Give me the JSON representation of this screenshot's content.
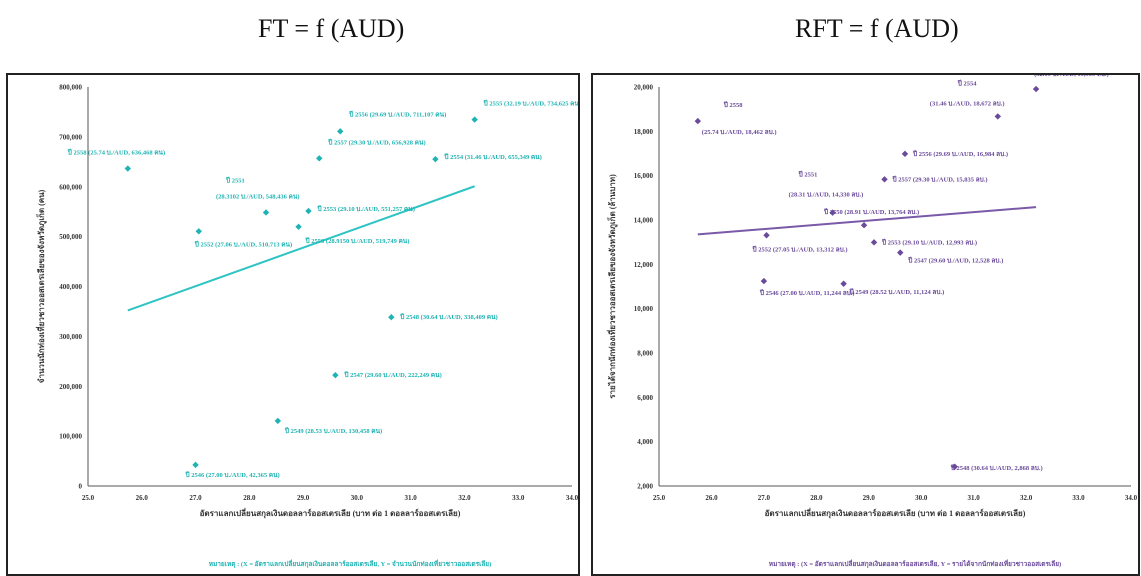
{
  "headlines": {
    "left": "FT = f (AUD)",
    "right": "RFT = f (AUD)"
  },
  "chart_data": [
    {
      "type": "scatter",
      "color": "#1fb3b3",
      "trend_color": "#2ec4c4",
      "xlim": [
        25.0,
        34.0
      ],
      "ylim": [
        0,
        800000
      ],
      "xticks": [
        "25.0",
        "26.0",
        "27.0",
        "28.0",
        "29.0",
        "30.0",
        "31.0",
        "32.0",
        "33.0",
        "34.0"
      ],
      "yticks": [
        "0",
        "100,000",
        "200,000",
        "300,000",
        "400,000",
        "500,000",
        "600,000",
        "700,000",
        "800,000"
      ],
      "xlabel": "อัตราแลกเปลี่ยนสกุลเงินดอลลาร์ออสเตรเลีย (บาท ต่อ 1 ดอลลาร์ออสเตรเลีย)",
      "ylabel": "จำนวนนักท่องเที่ยวชาวออสเตรเลียของจังหวัดภูเก็ต (คน)",
      "note": "หมายเหตุ : (X = อัตราแลกเปลี่ยนสกุลเงินดอลลาร์ออสเตรเลีย, Y = จำนวนนักท่องเที่ยวชาวออสเตรเลีย)",
      "trend": [
        [
          25.74,
          352000
        ],
        [
          32.19,
          601000
        ]
      ],
      "points": [
        {
          "x": 25.74,
          "y": 636468,
          "label": "ปี 2558 (25.74 บ./AUD, 636,468 คน)"
        },
        {
          "x": 27.06,
          "y": 510713,
          "label": "ปี 2552 (27.06 บ./AUD, 510,713 คน)"
        },
        {
          "x": 28.3102,
          "y": 548436,
          "label": "(28.3102 บ./AUD, 548,436 คน)",
          "title": "ปี 2551"
        },
        {
          "x": 28.915,
          "y": 519749,
          "label": "ปี 2550 (28.9150 บ./AUD, 519,749 คน)"
        },
        {
          "x": 29.1,
          "y": 551257,
          "label": "ปี 2553 (29.10 บ./AUD, 551,257 คน)"
        },
        {
          "x": 29.3,
          "y": 656928,
          "label": "ปี 2557 (29.30 บ./AUD, 656,928 คน)"
        },
        {
          "x": 29.69,
          "y": 711107,
          "label": "ปี 2556 (29.69 บ./AUD, 711,107 คน)"
        },
        {
          "x": 31.46,
          "y": 655349,
          "label": "ปี 2554 (31.46 บ./AUD, 655,349 คน)"
        },
        {
          "x": 32.19,
          "y": 734625,
          "label": "ปี 2555 (32.19 บ./AUD, 734,625 คน)"
        },
        {
          "x": 30.64,
          "y": 338409,
          "label": "ปี 2548 (30.64 บ./AUD, 338,409 คน)"
        },
        {
          "x": 29.6,
          "y": 222249,
          "label": "ปี 2547 (29.60 บ./AUD, 222,249 คน)"
        },
        {
          "x": 28.53,
          "y": 130458,
          "label": "ปี 2549 (28.53 บ./AUD, 130,458 คน)"
        },
        {
          "x": 27.0,
          "y": 42365,
          "label": "ปี 2546 (27.00 บ./AUD, 42,365 คน)"
        }
      ]
    },
    {
      "type": "scatter",
      "color": "#6a4a9a",
      "trend_color": "#7a5aa8",
      "xlim": [
        25.0,
        34.0
      ],
      "ylim": [
        2000,
        20000
      ],
      "xticks": [
        "25.0",
        "26.0",
        "27.0",
        "28.0",
        "29.0",
        "30.0",
        "31.0",
        "32.0",
        "33.0",
        "34.0"
      ],
      "yticks": [
        "2,000",
        "4,000",
        "6,000",
        "8,000",
        "10,000",
        "12,000",
        "14,000",
        "16,000",
        "18,000",
        "20,000"
      ],
      "xlabel": "อัตราแลกเปลี่ยนสกุลเงินดอลลาร์ออสเตรเลีย (บาท ต่อ 1 ดอลลาร์ออสเตรเลีย)",
      "ylabel": "รายได้จากนักท่องเที่ยวชาวออสเตรเลียของจังหวัดภูเก็ต (ล้านบาท)",
      "note": "หมายเหตุ : (X = อัตราแลกเปลี่ยนสกุลเงินดอลลาร์ออสเตรเลีย, Y = รายได้จากนักท่องเที่ยวชาวออสเตรเลีย)",
      "trend": [
        [
          25.74,
          13350
        ],
        [
          32.19,
          14580
        ]
      ],
      "points": [
        {
          "x": 25.74,
          "y": 18462,
          "label": "(25.74 บ./AUD, 18,462 ลบ.)",
          "title": "ปี 2558"
        },
        {
          "x": 31.46,
          "y": 18672,
          "label": "(31.46 บ./AUD, 18,672 ลบ.)",
          "title": "ปี 2554"
        },
        {
          "x": 32.19,
          "y": 19909,
          "label": "(32.19 บ./AUD, 19,909 ลบ.)",
          "title": "ปี 2555"
        },
        {
          "x": 29.69,
          "y": 16984,
          "label": "ปี 2556 (29.69 บ./AUD, 16,984 ลบ.)"
        },
        {
          "x": 29.3,
          "y": 15835,
          "label": "ปี 2557 (29.30 บ./AUD, 15,835 ลบ.)"
        },
        {
          "x": 28.31,
          "y": 14330,
          "label": "(28.31 บ./AUD, 14,330 ลบ.)",
          "title": "ปี 2551"
        },
        {
          "x": 28.91,
          "y": 13764,
          "label": "ปี 2550 (28.91 บ./AUD, 13,764 ลบ.)"
        },
        {
          "x": 27.05,
          "y": 13312,
          "label": "ปี 2552 (27.05 บ./AUD, 13,312 ลบ.)"
        },
        {
          "x": 29.1,
          "y": 12993,
          "label": "ปี 2553 (29.10 บ./AUD, 12,993 ลบ.)"
        },
        {
          "x": 29.6,
          "y": 12528,
          "label": "ปี 2547 (29.60 บ./AUD, 12,528 ลบ.)"
        },
        {
          "x": 27.0,
          "y": 11244,
          "label": "ปี 2546 (27.00 บ./AUD, 11,244 ลบ.)"
        },
        {
          "x": 28.52,
          "y": 11124,
          "label": "ปี 2549 (28.52 บ./AUD, 11,124 ลบ.)"
        },
        {
          "x": 30.64,
          "y": 2868,
          "label": "ปี 2548 (30.64 บ./AUD, 2,868 ลบ.)"
        }
      ]
    }
  ]
}
